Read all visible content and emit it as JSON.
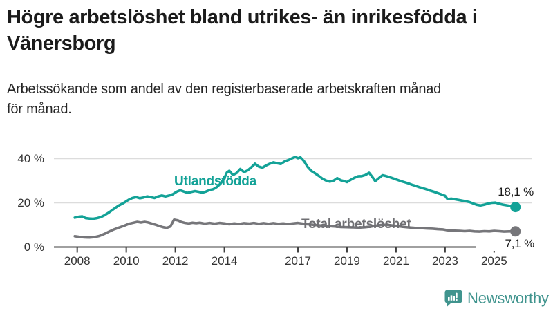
{
  "header": {
    "title_line1": "Högre arbetslöshet bland utrikes- än inrikesfödda i",
    "title_line2": "Vänersborg",
    "subtitle_line1": "Arbetssökande som andel av den registerbaserade arbetskraften månad",
    "subtitle_line2": "för månad."
  },
  "chart_data": {
    "type": "line",
    "title": "Högre arbetslöshet bland utrikes- än inrikesfödda i Vänersborg",
    "subtitle": "Arbetssökande som andel av den registerbaserade arbetskraften månad för månad.",
    "unit": "%",
    "xlabel": "",
    "ylabel": "",
    "ylim": [
      0,
      45
    ],
    "xlim": [
      2007.9,
      2026.4
    ],
    "grid": "horizontal",
    "legend_position": "inline-labels",
    "colors": {
      "gridline": "#dcdcdc",
      "axis": "#404040",
      "tick_text": "#333333",
      "value_label_text": "#1b1b1b"
    },
    "y_ticks": [
      {
        "value": 0,
        "label": "0 %"
      },
      {
        "value": 20,
        "label": "20 %"
      },
      {
        "value": 40,
        "label": "40 %"
      }
    ],
    "x_ticks": [
      {
        "value": 2008,
        "label": "2008"
      },
      {
        "value": 2010,
        "label": "2010"
      },
      {
        "value": 2012,
        "label": "2012"
      },
      {
        "value": 2014,
        "label": "2014"
      },
      {
        "value": 2017,
        "label": "2017"
      },
      {
        "value": 2019,
        "label": "2019"
      },
      {
        "value": 2021,
        "label": "2021"
      },
      {
        "value": 2023,
        "label": "2023"
      },
      {
        "value": 2025,
        "label": "2025"
      }
    ],
    "series": [
      {
        "name": "Utlandsfödda",
        "color": "#13a297",
        "end_value": 18.1,
        "end_label": "18,1 %",
        "points": [
          [
            2007.9,
            13.3
          ],
          [
            2008.05,
            13.7
          ],
          [
            2008.2,
            13.9
          ],
          [
            2008.35,
            13.1
          ],
          [
            2008.5,
            12.9
          ],
          [
            2008.65,
            12.8
          ],
          [
            2008.8,
            13.1
          ],
          [
            2008.95,
            13.5
          ],
          [
            2009.1,
            14.3
          ],
          [
            2009.3,
            15.7
          ],
          [
            2009.5,
            17.3
          ],
          [
            2009.7,
            18.8
          ],
          [
            2009.9,
            20.0
          ],
          [
            2010.1,
            21.4
          ],
          [
            2010.25,
            22.2
          ],
          [
            2010.4,
            22.6
          ],
          [
            2010.55,
            22.1
          ],
          [
            2010.7,
            22.4
          ],
          [
            2010.85,
            22.9
          ],
          [
            2011.0,
            22.6
          ],
          [
            2011.15,
            22.2
          ],
          [
            2011.3,
            22.9
          ],
          [
            2011.45,
            23.3
          ],
          [
            2011.6,
            22.9
          ],
          [
            2011.75,
            23.3
          ],
          [
            2011.9,
            23.9
          ],
          [
            2012.05,
            25.0
          ],
          [
            2012.2,
            25.7
          ],
          [
            2012.35,
            25.1
          ],
          [
            2012.5,
            24.5
          ],
          [
            2012.65,
            24.9
          ],
          [
            2012.8,
            25.3
          ],
          [
            2012.95,
            25.0
          ],
          [
            2013.1,
            24.6
          ],
          [
            2013.25,
            25.1
          ],
          [
            2013.4,
            25.8
          ],
          [
            2013.55,
            26.2
          ],
          [
            2013.7,
            27.2
          ],
          [
            2013.85,
            28.8
          ],
          [
            2014.0,
            31.2
          ],
          [
            2014.1,
            33.7
          ],
          [
            2014.2,
            34.5
          ],
          [
            2014.35,
            32.6
          ],
          [
            2014.5,
            33.5
          ],
          [
            2014.65,
            35.3
          ],
          [
            2014.8,
            33.9
          ],
          [
            2014.95,
            34.7
          ],
          [
            2015.1,
            36.1
          ],
          [
            2015.25,
            37.7
          ],
          [
            2015.4,
            36.4
          ],
          [
            2015.55,
            35.9
          ],
          [
            2015.7,
            36.9
          ],
          [
            2015.85,
            37.7
          ],
          [
            2016.0,
            38.3
          ],
          [
            2016.15,
            37.9
          ],
          [
            2016.3,
            37.6
          ],
          [
            2016.45,
            38.7
          ],
          [
            2016.6,
            39.3
          ],
          [
            2016.75,
            40.1
          ],
          [
            2016.9,
            40.8
          ],
          [
            2017.0,
            40.2
          ],
          [
            2017.1,
            40.6
          ],
          [
            2017.25,
            38.8
          ],
          [
            2017.4,
            36.2
          ],
          [
            2017.55,
            34.4
          ],
          [
            2017.7,
            33.3
          ],
          [
            2017.85,
            32.2
          ],
          [
            2018.0,
            30.9
          ],
          [
            2018.15,
            30.1
          ],
          [
            2018.3,
            29.6
          ],
          [
            2018.45,
            30.0
          ],
          [
            2018.6,
            31.2
          ],
          [
            2018.75,
            30.2
          ],
          [
            2018.9,
            29.8
          ],
          [
            2019.0,
            29.4
          ],
          [
            2019.15,
            30.4
          ],
          [
            2019.3,
            31.3
          ],
          [
            2019.45,
            32.0
          ],
          [
            2019.6,
            32.1
          ],
          [
            2019.75,
            32.6
          ],
          [
            2019.9,
            33.6
          ],
          [
            2020.05,
            31.5
          ],
          [
            2020.15,
            29.8
          ],
          [
            2020.3,
            31.2
          ],
          [
            2020.45,
            32.5
          ],
          [
            2020.6,
            32.1
          ],
          [
            2020.75,
            31.6
          ],
          [
            2020.9,
            31.0
          ],
          [
            2021.05,
            30.4
          ],
          [
            2021.2,
            29.8
          ],
          [
            2021.35,
            29.3
          ],
          [
            2021.5,
            28.8
          ],
          [
            2021.65,
            28.2
          ],
          [
            2021.8,
            27.7
          ],
          [
            2021.95,
            27.1
          ],
          [
            2022.1,
            26.6
          ],
          [
            2022.25,
            26.1
          ],
          [
            2022.4,
            25.5
          ],
          [
            2022.55,
            25.0
          ],
          [
            2022.7,
            24.4
          ],
          [
            2022.85,
            23.8
          ],
          [
            2023.0,
            23.2
          ],
          [
            2023.1,
            21.7
          ],
          [
            2023.25,
            21.9
          ],
          [
            2023.4,
            21.6
          ],
          [
            2023.55,
            21.3
          ],
          [
            2023.7,
            21.0
          ],
          [
            2023.85,
            20.7
          ],
          [
            2024.0,
            20.3
          ],
          [
            2024.15,
            19.7
          ],
          [
            2024.3,
            19.1
          ],
          [
            2024.45,
            18.8
          ],
          [
            2024.6,
            19.2
          ],
          [
            2024.75,
            19.7
          ],
          [
            2024.9,
            20.0
          ],
          [
            2025.05,
            20.1
          ],
          [
            2025.2,
            19.6
          ],
          [
            2025.35,
            19.2
          ],
          [
            2025.5,
            18.9
          ],
          [
            2025.65,
            18.6
          ],
          [
            2025.87,
            18.1
          ]
        ]
      },
      {
        "name": "Total arbetslöshet",
        "color": "#76767a",
        "end_value": 7.1,
        "end_label": "7,1 %",
        "points": [
          [
            2007.9,
            4.9
          ],
          [
            2008.1,
            4.6
          ],
          [
            2008.3,
            4.4
          ],
          [
            2008.5,
            4.3
          ],
          [
            2008.7,
            4.5
          ],
          [
            2008.9,
            5.0
          ],
          [
            2009.1,
            5.9
          ],
          [
            2009.3,
            7.0
          ],
          [
            2009.5,
            8.0
          ],
          [
            2009.7,
            8.8
          ],
          [
            2009.9,
            9.6
          ],
          [
            2010.1,
            10.5
          ],
          [
            2010.3,
            11.0
          ],
          [
            2010.45,
            11.4
          ],
          [
            2010.6,
            11.1
          ],
          [
            2010.75,
            11.4
          ],
          [
            2010.9,
            11.1
          ],
          [
            2011.05,
            10.6
          ],
          [
            2011.2,
            10.1
          ],
          [
            2011.35,
            9.5
          ],
          [
            2011.5,
            9.0
          ],
          [
            2011.65,
            8.7
          ],
          [
            2011.8,
            9.3
          ],
          [
            2011.95,
            12.4
          ],
          [
            2012.1,
            12.1
          ],
          [
            2012.25,
            11.3
          ],
          [
            2012.4,
            10.9
          ],
          [
            2012.55,
            10.7
          ],
          [
            2012.7,
            11.0
          ],
          [
            2012.85,
            10.8
          ],
          [
            2013.0,
            11.0
          ],
          [
            2013.2,
            10.6
          ],
          [
            2013.4,
            10.9
          ],
          [
            2013.6,
            10.6
          ],
          [
            2013.8,
            10.9
          ],
          [
            2014.0,
            10.7
          ],
          [
            2014.2,
            10.3
          ],
          [
            2014.4,
            10.7
          ],
          [
            2014.6,
            10.4
          ],
          [
            2014.8,
            10.8
          ],
          [
            2015.0,
            10.6
          ],
          [
            2015.2,
            10.9
          ],
          [
            2015.4,
            10.5
          ],
          [
            2015.6,
            10.8
          ],
          [
            2015.8,
            10.5
          ],
          [
            2016.0,
            10.8
          ],
          [
            2016.2,
            10.5
          ],
          [
            2016.4,
            10.7
          ],
          [
            2016.6,
            10.4
          ],
          [
            2016.8,
            10.7
          ],
          [
            2017.0,
            10.9
          ],
          [
            2017.2,
            10.6
          ],
          [
            2017.4,
            10.3
          ],
          [
            2017.6,
            10.1
          ],
          [
            2017.8,
            9.9
          ],
          [
            2018.0,
            9.7
          ],
          [
            2018.25,
            9.5
          ],
          [
            2018.5,
            9.3
          ],
          [
            2018.75,
            9.1
          ],
          [
            2019.0,
            9.0
          ],
          [
            2019.25,
            8.9
          ],
          [
            2019.5,
            8.8
          ],
          [
            2019.75,
            9.0
          ],
          [
            2020.0,
            9.3
          ],
          [
            2020.25,
            9.8
          ],
          [
            2020.5,
            10.1
          ],
          [
            2020.75,
            9.9
          ],
          [
            2021.0,
            9.6
          ],
          [
            2021.25,
            9.2
          ],
          [
            2021.5,
            8.9
          ],
          [
            2021.75,
            8.7
          ],
          [
            2022.0,
            8.6
          ],
          [
            2022.25,
            8.4
          ],
          [
            2022.5,
            8.3
          ],
          [
            2022.7,
            8.1
          ],
          [
            2022.9,
            8.0
          ],
          [
            2023.05,
            7.7
          ],
          [
            2023.2,
            7.5
          ],
          [
            2023.4,
            7.4
          ],
          [
            2023.6,
            7.3
          ],
          [
            2023.8,
            7.2
          ],
          [
            2024.0,
            7.3
          ],
          [
            2024.2,
            7.1
          ],
          [
            2024.4,
            7.0
          ],
          [
            2024.6,
            7.2
          ],
          [
            2024.8,
            7.1
          ],
          [
            2025.0,
            7.3
          ],
          [
            2025.2,
            7.2
          ],
          [
            2025.4,
            7.0
          ],
          [
            2025.6,
            7.1
          ],
          [
            2025.87,
            7.1
          ]
        ]
      }
    ]
  },
  "branding": {
    "logo_text": "Newsworthy",
    "logo_color": "#40948e"
  }
}
